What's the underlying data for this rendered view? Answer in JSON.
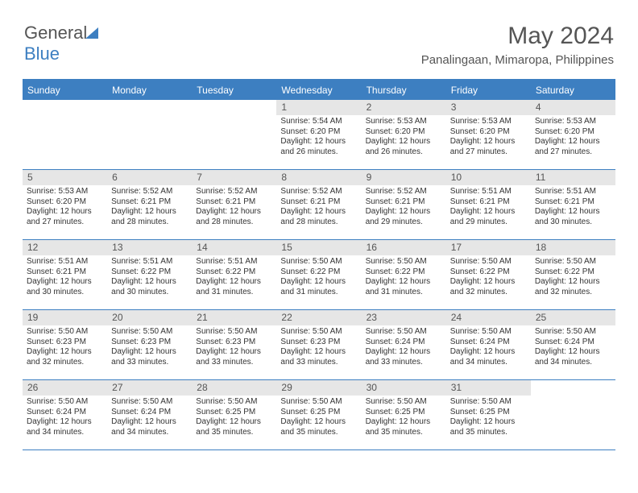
{
  "logo": {
    "text1": "General",
    "text2": "Blue"
  },
  "header": {
    "month": "May 2024",
    "location": "Panalingaan, Mimaropa, Philippines"
  },
  "colors": {
    "accent": "#3d7fc1",
    "day_bg": "#e6e6e6",
    "text": "#333333",
    "header_text": "#555555"
  },
  "days": [
    "Sunday",
    "Monday",
    "Tuesday",
    "Wednesday",
    "Thursday",
    "Friday",
    "Saturday"
  ],
  "weeks": [
    [
      {
        "n": "",
        "sr": "",
        "ss": "",
        "dl": ""
      },
      {
        "n": "",
        "sr": "",
        "ss": "",
        "dl": ""
      },
      {
        "n": "",
        "sr": "",
        "ss": "",
        "dl": ""
      },
      {
        "n": "1",
        "sr": "Sunrise: 5:54 AM",
        "ss": "Sunset: 6:20 PM",
        "dl": "Daylight: 12 hours and 26 minutes."
      },
      {
        "n": "2",
        "sr": "Sunrise: 5:53 AM",
        "ss": "Sunset: 6:20 PM",
        "dl": "Daylight: 12 hours and 26 minutes."
      },
      {
        "n": "3",
        "sr": "Sunrise: 5:53 AM",
        "ss": "Sunset: 6:20 PM",
        "dl": "Daylight: 12 hours and 27 minutes."
      },
      {
        "n": "4",
        "sr": "Sunrise: 5:53 AM",
        "ss": "Sunset: 6:20 PM",
        "dl": "Daylight: 12 hours and 27 minutes."
      }
    ],
    [
      {
        "n": "5",
        "sr": "Sunrise: 5:53 AM",
        "ss": "Sunset: 6:20 PM",
        "dl": "Daylight: 12 hours and 27 minutes."
      },
      {
        "n": "6",
        "sr": "Sunrise: 5:52 AM",
        "ss": "Sunset: 6:21 PM",
        "dl": "Daylight: 12 hours and 28 minutes."
      },
      {
        "n": "7",
        "sr": "Sunrise: 5:52 AM",
        "ss": "Sunset: 6:21 PM",
        "dl": "Daylight: 12 hours and 28 minutes."
      },
      {
        "n": "8",
        "sr": "Sunrise: 5:52 AM",
        "ss": "Sunset: 6:21 PM",
        "dl": "Daylight: 12 hours and 28 minutes."
      },
      {
        "n": "9",
        "sr": "Sunrise: 5:52 AM",
        "ss": "Sunset: 6:21 PM",
        "dl": "Daylight: 12 hours and 29 minutes."
      },
      {
        "n": "10",
        "sr": "Sunrise: 5:51 AM",
        "ss": "Sunset: 6:21 PM",
        "dl": "Daylight: 12 hours and 29 minutes."
      },
      {
        "n": "11",
        "sr": "Sunrise: 5:51 AM",
        "ss": "Sunset: 6:21 PM",
        "dl": "Daylight: 12 hours and 30 minutes."
      }
    ],
    [
      {
        "n": "12",
        "sr": "Sunrise: 5:51 AM",
        "ss": "Sunset: 6:21 PM",
        "dl": "Daylight: 12 hours and 30 minutes."
      },
      {
        "n": "13",
        "sr": "Sunrise: 5:51 AM",
        "ss": "Sunset: 6:22 PM",
        "dl": "Daylight: 12 hours and 30 minutes."
      },
      {
        "n": "14",
        "sr": "Sunrise: 5:51 AM",
        "ss": "Sunset: 6:22 PM",
        "dl": "Daylight: 12 hours and 31 minutes."
      },
      {
        "n": "15",
        "sr": "Sunrise: 5:50 AM",
        "ss": "Sunset: 6:22 PM",
        "dl": "Daylight: 12 hours and 31 minutes."
      },
      {
        "n": "16",
        "sr": "Sunrise: 5:50 AM",
        "ss": "Sunset: 6:22 PM",
        "dl": "Daylight: 12 hours and 31 minutes."
      },
      {
        "n": "17",
        "sr": "Sunrise: 5:50 AM",
        "ss": "Sunset: 6:22 PM",
        "dl": "Daylight: 12 hours and 32 minutes."
      },
      {
        "n": "18",
        "sr": "Sunrise: 5:50 AM",
        "ss": "Sunset: 6:22 PM",
        "dl": "Daylight: 12 hours and 32 minutes."
      }
    ],
    [
      {
        "n": "19",
        "sr": "Sunrise: 5:50 AM",
        "ss": "Sunset: 6:23 PM",
        "dl": "Daylight: 12 hours and 32 minutes."
      },
      {
        "n": "20",
        "sr": "Sunrise: 5:50 AM",
        "ss": "Sunset: 6:23 PM",
        "dl": "Daylight: 12 hours and 33 minutes."
      },
      {
        "n": "21",
        "sr": "Sunrise: 5:50 AM",
        "ss": "Sunset: 6:23 PM",
        "dl": "Daylight: 12 hours and 33 minutes."
      },
      {
        "n": "22",
        "sr": "Sunrise: 5:50 AM",
        "ss": "Sunset: 6:23 PM",
        "dl": "Daylight: 12 hours and 33 minutes."
      },
      {
        "n": "23",
        "sr": "Sunrise: 5:50 AM",
        "ss": "Sunset: 6:24 PM",
        "dl": "Daylight: 12 hours and 33 minutes."
      },
      {
        "n": "24",
        "sr": "Sunrise: 5:50 AM",
        "ss": "Sunset: 6:24 PM",
        "dl": "Daylight: 12 hours and 34 minutes."
      },
      {
        "n": "25",
        "sr": "Sunrise: 5:50 AM",
        "ss": "Sunset: 6:24 PM",
        "dl": "Daylight: 12 hours and 34 minutes."
      }
    ],
    [
      {
        "n": "26",
        "sr": "Sunrise: 5:50 AM",
        "ss": "Sunset: 6:24 PM",
        "dl": "Daylight: 12 hours and 34 minutes."
      },
      {
        "n": "27",
        "sr": "Sunrise: 5:50 AM",
        "ss": "Sunset: 6:24 PM",
        "dl": "Daylight: 12 hours and 34 minutes."
      },
      {
        "n": "28",
        "sr": "Sunrise: 5:50 AM",
        "ss": "Sunset: 6:25 PM",
        "dl": "Daylight: 12 hours and 35 minutes."
      },
      {
        "n": "29",
        "sr": "Sunrise: 5:50 AM",
        "ss": "Sunset: 6:25 PM",
        "dl": "Daylight: 12 hours and 35 minutes."
      },
      {
        "n": "30",
        "sr": "Sunrise: 5:50 AM",
        "ss": "Sunset: 6:25 PM",
        "dl": "Daylight: 12 hours and 35 minutes."
      },
      {
        "n": "31",
        "sr": "Sunrise: 5:50 AM",
        "ss": "Sunset: 6:25 PM",
        "dl": "Daylight: 12 hours and 35 minutes."
      },
      {
        "n": "",
        "sr": "",
        "ss": "",
        "dl": ""
      }
    ]
  ]
}
